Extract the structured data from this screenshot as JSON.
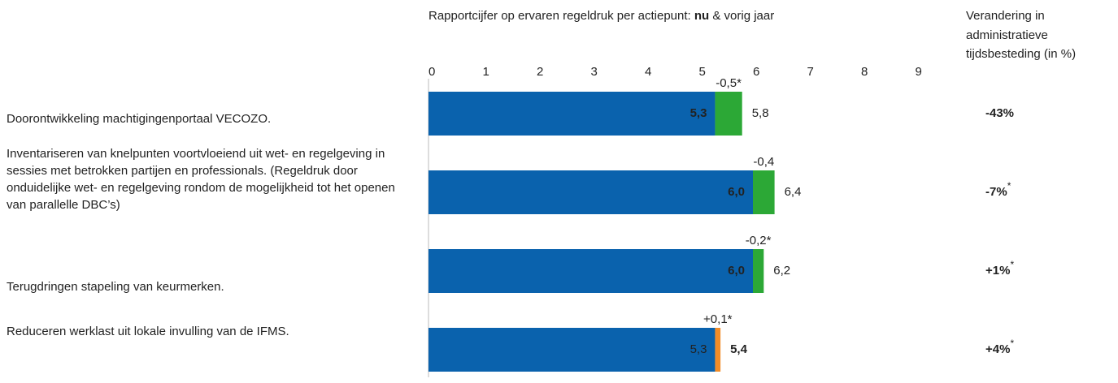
{
  "chart_data": {
    "type": "bar",
    "orientation": "horizontal",
    "title": "Rapportcijfer op ervaren regeldruk per actiepunt:",
    "title_joiner": "&",
    "change_title": [
      "Verandering in",
      "administratieve",
      "tijdsbesteding (in %)"
    ],
    "categories": [
      "Doorontwikkeling machtigingenportaal VECOZO.",
      "Inventariseren van knelpunten voortvloeiend uit wet- en regelgeving in sessies met betrokken partijen en professionals. (Regeldruk door onduidelijke wet- en regelgeving rondom de mogelijkheid tot het openen van parallelle DBC’s)",
      "Terugdringen stapeling van keurmerken.",
      "Reduceren werklast uit lokale invulling van de IFMS."
    ],
    "series": [
      {
        "name": "nu",
        "values": [
          5.3,
          6.0,
          6.0,
          5.4
        ],
        "value_labels": [
          "5,3",
          "6,0",
          "6,0",
          "5,4"
        ]
      },
      {
        "name": "vorig jaar",
        "values": [
          5.8,
          6.4,
          6.2,
          5.3
        ],
        "value_labels": [
          "5,8",
          "6,4",
          "6,2",
          "5,3"
        ]
      }
    ],
    "differences": {
      "values": [
        -0.5,
        -0.4,
        -0.2,
        0.1
      ],
      "value_labels": [
        "-0,5*",
        "-0,4",
        "-0,2*",
        "+0,1*"
      ]
    },
    "change": [
      {
        "value": -43,
        "label": "-43%"
      },
      {
        "value": -7,
        "label": "-7%",
        "note": "*"
      },
      {
        "value": 1,
        "label": "+1%",
        "note": "*"
      },
      {
        "value": 4,
        "label": "+4%",
        "note": "*"
      }
    ],
    "bar_color": "#0a62ad",
    "decrease_color": "#2ca836",
    "increase_color": "#f28c28",
    "change_negative_color": "#2ca836",
    "change_positive_color": "#c0191f",
    "xlim": [
      0,
      9
    ],
    "xticks": [
      0,
      1,
      2,
      3,
      4,
      5,
      6,
      7,
      8,
      9
    ]
  }
}
